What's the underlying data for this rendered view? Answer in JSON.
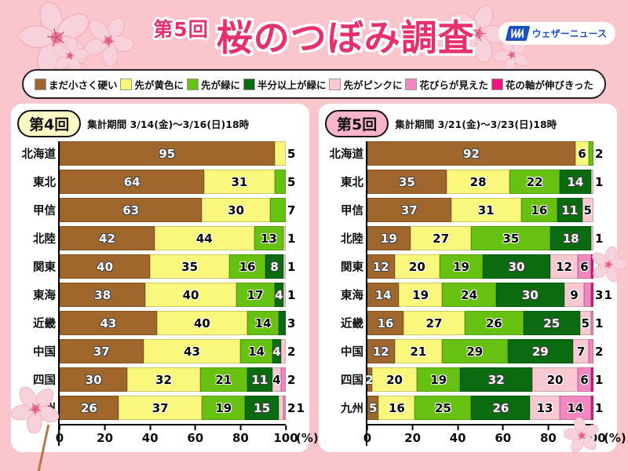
{
  "header": {
    "title_prefix": "第5回",
    "title": "桜のつぼみ調査",
    "logo_text": "ウェザーニュース"
  },
  "legend": {
    "items": [
      {
        "label": "まだ小さく硬い",
        "color": "#A0672D"
      },
      {
        "label": "先が黄色に",
        "color": "#F9F77C"
      },
      {
        "label": "先が緑に",
        "color": "#67C110"
      },
      {
        "label": "半分以上が緑に",
        "color": "#0A6B10"
      },
      {
        "label": "先がピンクに",
        "color": "#F9C8D0"
      },
      {
        "label": "花びらが見えた",
        "color": "#F287C2"
      },
      {
        "label": "花の軸が伸びきった",
        "color": "#F0157D"
      }
    ]
  },
  "axis": {
    "ticks": [
      "0",
      "20",
      "40",
      "60",
      "80",
      "100"
    ],
    "unit": "(%)"
  },
  "chart_data": [
    {
      "type": "bar",
      "round": "第4回",
      "period": "集計期間 3/14(金)〜3/16(日)18時",
      "badge_color": "#FCFBC6",
      "xlim": [
        0,
        100
      ],
      "categories": [
        "北海道",
        "東北",
        "甲信",
        "北陸",
        "関東",
        "東海",
        "近畿",
        "中国",
        "四国",
        "九州"
      ],
      "series": [
        {
          "name": "まだ小さく硬い",
          "color": "#A0672D",
          "values": [
            95,
            64,
            63,
            42,
            40,
            38,
            43,
            37,
            30,
            26
          ]
        },
        {
          "name": "先が黄色に",
          "color": "#F9F77C",
          "values": [
            5,
            31,
            30,
            44,
            35,
            40,
            40,
            43,
            32,
            37
          ]
        },
        {
          "name": "先が緑に",
          "color": "#67C110",
          "values": [
            0,
            5,
            7,
            13,
            16,
            17,
            14,
            14,
            21,
            19
          ]
        },
        {
          "name": "半分以上が緑に",
          "color": "#0A6B10",
          "values": [
            0,
            0,
            0,
            0,
            8,
            4,
            3,
            4,
            11,
            15
          ]
        },
        {
          "name": "先がピンクに",
          "color": "#F9C8D0",
          "values": [
            0,
            0,
            0,
            1,
            1,
            1,
            0,
            2,
            4,
            2
          ]
        },
        {
          "name": "花びらが見えた",
          "color": "#F287C2",
          "values": [
            0,
            0,
            0,
            0,
            0,
            0,
            0,
            0,
            2,
            1
          ]
        },
        {
          "name": "花の軸が伸びきった",
          "color": "#F0157D",
          "values": [
            0,
            0,
            0,
            0,
            0,
            0,
            0,
            0,
            0,
            0
          ]
        }
      ]
    },
    {
      "type": "bar",
      "round": "第5回",
      "period": "集計期間 3/21(金)〜3/23(日)18時",
      "badge_color": "#F9B4CB",
      "xlim": [
        0,
        100
      ],
      "categories": [
        "北海道",
        "東北",
        "甲信",
        "北陸",
        "関東",
        "東海",
        "近畿",
        "中国",
        "四国",
        "九州"
      ],
      "series": [
        {
          "name": "まだ小さく硬い",
          "color": "#A0672D",
          "values": [
            92,
            35,
            37,
            19,
            12,
            14,
            16,
            12,
            2,
            5
          ]
        },
        {
          "name": "先が黄色に",
          "color": "#F9F77C",
          "values": [
            6,
            28,
            31,
            27,
            20,
            19,
            27,
            21,
            20,
            16
          ]
        },
        {
          "name": "先が緑に",
          "color": "#67C110",
          "values": [
            2,
            22,
            16,
            35,
            19,
            24,
            26,
            29,
            19,
            25
          ]
        },
        {
          "name": "半分以上が緑に",
          "color": "#0A6B10",
          "values": [
            0,
            14,
            11,
            18,
            30,
            30,
            25,
            29,
            32,
            26
          ]
        },
        {
          "name": "先がピンクに",
          "color": "#F9C8D0",
          "values": [
            0,
            1,
            5,
            1,
            12,
            9,
            5,
            7,
            20,
            13
          ]
        },
        {
          "name": "花びらが見えた",
          "color": "#F287C2",
          "values": [
            0,
            0,
            0,
            0,
            6,
            3,
            1,
            2,
            6,
            14
          ]
        },
        {
          "name": "花の軸が伸びきった",
          "color": "#F0157D",
          "values": [
            0,
            0,
            0,
            0,
            1,
            1,
            0,
            0,
            1,
            1
          ]
        }
      ]
    }
  ]
}
